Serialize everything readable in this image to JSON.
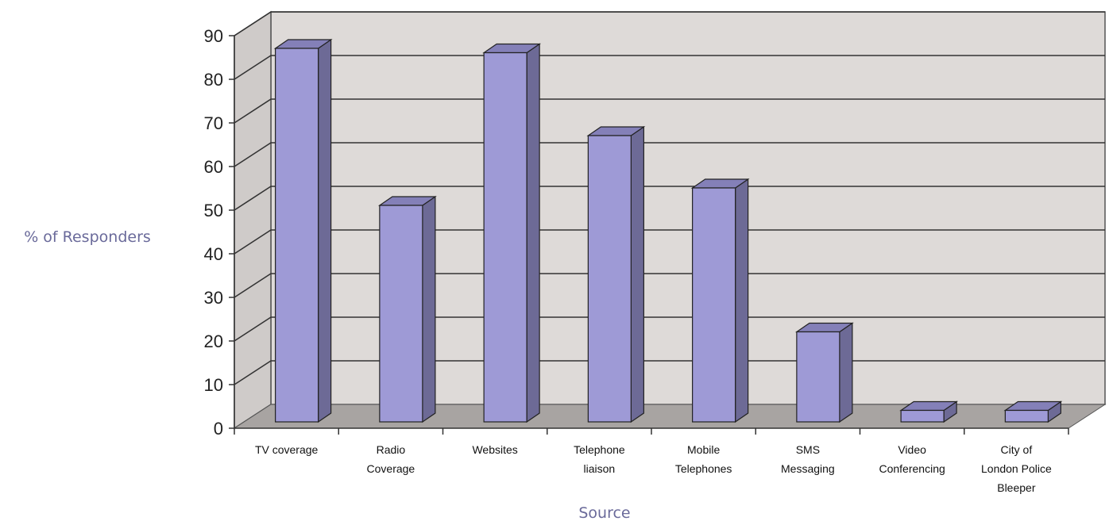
{
  "chart_data": {
    "type": "bar",
    "title": "",
    "xlabel": "Source",
    "ylabel": "% of Responders",
    "categories": [
      [
        "TV coverage"
      ],
      [
        "Radio",
        "Coverage"
      ],
      [
        "Websites"
      ],
      [
        "Telephone",
        "liaison"
      ],
      [
        "Mobile",
        "Telephones"
      ],
      [
        "SMS",
        "Messaging"
      ],
      [
        "Video",
        "Conferencing"
      ],
      [
        "City of",
        "London Police",
        "Bleeper"
      ]
    ],
    "values": [
      86,
      50,
      85,
      66,
      54,
      21,
      3,
      3
    ],
    "ylim": [
      0,
      90
    ],
    "yticks": [
      "0",
      "10",
      "20",
      "30",
      "40",
      "50",
      "60",
      "70",
      "80",
      "90"
    ],
    "grid": true,
    "three_d": true,
    "colors": {
      "bar_front": "#9e9ad6",
      "bar_side": "#6d6a96",
      "bar_top": "#8480b8",
      "wall": "#dedad8",
      "floor": "#a8a4a2"
    }
  }
}
